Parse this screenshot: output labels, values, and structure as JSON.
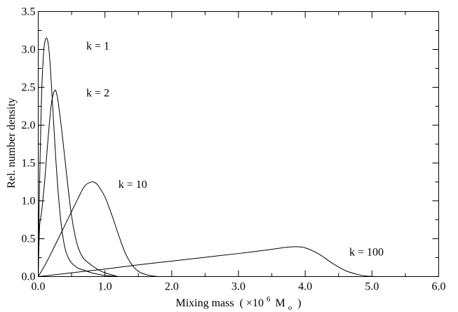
{
  "chart_data": {
    "type": "line",
    "title": "",
    "xlabel": "Mixing mass",
    "xlabel_parts": {
      "open": "( ",
      "times": "×10",
      "exp": "6",
      "unit": "M",
      "unit_sub": "o",
      "close": ")"
    },
    "ylabel": "Rel. number density",
    "xlim": [
      0,
      6
    ],
    "ylim": [
      0,
      3.5
    ],
    "x_ticks": [
      0,
      1,
      2,
      3,
      4,
      5,
      6
    ],
    "x_tick_labels": [
      "0.0",
      "1.0",
      "2.0",
      "3.0",
      "4.0",
      "5.0",
      "6.0"
    ],
    "y_ticks": [
      0,
      0.5,
      1,
      1.5,
      2,
      2.5,
      3,
      3.5
    ],
    "y_tick_labels": [
      "0.0",
      "0.5",
      "1.0",
      "1.5",
      "2.0",
      "2.5",
      "3.0",
      "3.5"
    ],
    "grid": false,
    "series": [
      {
        "name": "k = 1",
        "x": [
          0.0,
          0.02,
          0.05,
          0.08,
          0.1,
          0.12,
          0.14,
          0.16,
          0.18,
          0.2,
          0.23,
          0.26,
          0.3,
          0.35,
          0.4,
          0.45,
          0.5,
          0.55,
          0.6,
          0.7,
          0.8,
          0.9,
          1.0,
          1.2
        ],
        "y": [
          0.0,
          1.2,
          2.4,
          2.95,
          3.1,
          3.15,
          3.12,
          3.0,
          2.78,
          2.5,
          2.05,
          1.6,
          1.1,
          0.65,
          0.38,
          0.25,
          0.18,
          0.14,
          0.11,
          0.08,
          0.05,
          0.03,
          0.015,
          0.0
        ]
      },
      {
        "name": "k = 2",
        "x": [
          0.0,
          0.02,
          0.05,
          0.1,
          0.15,
          0.2,
          0.25,
          0.28,
          0.3,
          0.35,
          0.4,
          0.45,
          0.5,
          0.55,
          0.6,
          0.65,
          0.7,
          0.8,
          0.9,
          1.0,
          1.2
        ],
        "y": [
          0.0,
          0.65,
          0.85,
          1.3,
          1.85,
          2.3,
          2.46,
          2.4,
          2.3,
          1.95,
          1.55,
          1.15,
          0.8,
          0.55,
          0.38,
          0.28,
          0.22,
          0.15,
          0.09,
          0.05,
          0.0
        ]
      },
      {
        "name": "k = 10",
        "x": [
          0.0,
          0.1,
          0.2,
          0.3,
          0.4,
          0.5,
          0.6,
          0.7,
          0.8,
          0.85,
          0.9,
          1.0,
          1.1,
          1.2,
          1.3,
          1.4,
          1.5,
          1.6,
          1.7,
          1.8
        ],
        "y": [
          0.0,
          0.15,
          0.32,
          0.5,
          0.68,
          0.86,
          1.04,
          1.2,
          1.25,
          1.24,
          1.2,
          1.05,
          0.82,
          0.56,
          0.32,
          0.16,
          0.07,
          0.03,
          0.01,
          0.0
        ]
      },
      {
        "name": "k = 100",
        "x": [
          0.0,
          0.5,
          1.0,
          1.5,
          2.0,
          2.5,
          3.0,
          3.5,
          3.7,
          3.85,
          4.0,
          4.2,
          4.4,
          4.6,
          4.8,
          4.95,
          5.1
        ],
        "y": [
          0.0,
          0.05,
          0.1,
          0.155,
          0.205,
          0.255,
          0.305,
          0.36,
          0.385,
          0.395,
          0.38,
          0.3,
          0.18,
          0.08,
          0.025,
          0.005,
          0.0
        ]
      }
    ],
    "annotations": [
      {
        "text": "k = 1",
        "x": 0.72,
        "y": 3.0
      },
      {
        "text": "k = 2",
        "x": 0.72,
        "y": 2.38
      },
      {
        "text": "k = 10",
        "x": 1.2,
        "y": 1.17
      },
      {
        "text": "k = 100",
        "x": 4.66,
        "y": 0.28
      }
    ]
  }
}
